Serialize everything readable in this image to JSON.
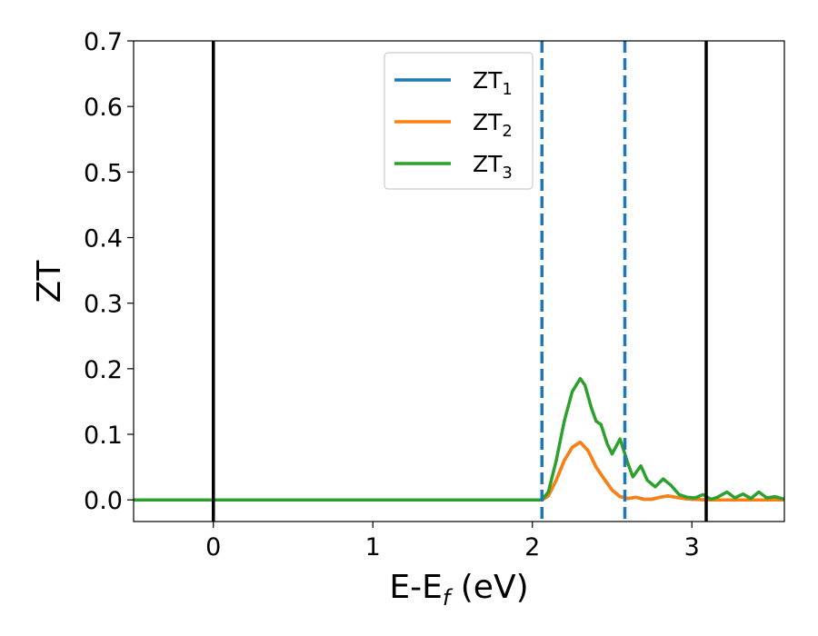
{
  "chart_data": {
    "type": "line",
    "xlabel": "E-E",
    "xlabel_sub": "f",
    "xlabel_unit": " (eV)",
    "ylabel": "ZT",
    "xlim": [
      -0.5,
      3.58
    ],
    "ylim": [
      -0.033,
      0.7
    ],
    "x_ticks": [
      0,
      1,
      2,
      3
    ],
    "x_tick_labels": [
      "0",
      "1",
      "2",
      "3"
    ],
    "y_ticks": [
      0.0,
      0.1,
      0.2,
      0.3,
      0.4,
      0.5,
      0.6,
      0.7
    ],
    "y_tick_labels": [
      "0.0",
      "0.1",
      "0.2",
      "0.3",
      "0.4",
      "0.5",
      "0.6",
      "0.7"
    ],
    "grid": false,
    "legend_position": "top-center",
    "vlines": [
      {
        "x": 0.0,
        "color": "#000000",
        "style": "solid"
      },
      {
        "x": 3.09,
        "color": "#000000",
        "style": "solid"
      },
      {
        "x": 2.06,
        "color": "#1f77b4",
        "style": "dashed"
      },
      {
        "x": 2.58,
        "color": "#1f77b4",
        "style": "dashed"
      }
    ],
    "series": [
      {
        "name": "ZT",
        "sub": "1",
        "color": "#1f77b4",
        "x": [
          -0.5,
          2.0,
          2.06,
          2.1,
          2.15,
          2.2,
          2.25,
          2.3,
          2.35,
          2.4,
          2.45,
          2.5,
          2.55,
          2.6,
          2.65,
          2.7,
          2.75,
          2.8,
          2.85,
          2.9,
          2.95,
          3.0,
          3.1,
          3.2,
          3.3,
          3.4,
          3.5,
          3.58
        ],
        "y": [
          0.0,
          0.0,
          0.0,
          0.006,
          0.03,
          0.06,
          0.08,
          0.088,
          0.075,
          0.05,
          0.032,
          0.015,
          0.005,
          0.002,
          0.004,
          0.001,
          0.001,
          0.004,
          0.006,
          0.004,
          0.002,
          0.001,
          0.0,
          0.0,
          0.0,
          0.0,
          0.0,
          0.0
        ]
      },
      {
        "name": "ZT",
        "sub": "2",
        "color": "#ff7f0e",
        "x": [
          -0.5,
          2.0,
          2.06,
          2.1,
          2.15,
          2.2,
          2.25,
          2.3,
          2.35,
          2.4,
          2.45,
          2.5,
          2.55,
          2.6,
          2.65,
          2.7,
          2.75,
          2.8,
          2.85,
          2.9,
          2.95,
          3.0,
          3.1,
          3.2,
          3.3,
          3.4,
          3.5,
          3.58
        ],
        "y": [
          0.0,
          0.0,
          0.0,
          0.006,
          0.03,
          0.06,
          0.08,
          0.088,
          0.075,
          0.05,
          0.032,
          0.015,
          0.005,
          0.002,
          0.004,
          0.001,
          0.001,
          0.004,
          0.006,
          0.004,
          0.002,
          0.001,
          0.0,
          0.0,
          0.0,
          0.0,
          0.0,
          0.0
        ]
      },
      {
        "name": "ZT",
        "sub": "3",
        "color": "#2ca02c",
        "x": [
          -0.5,
          2.0,
          2.06,
          2.1,
          2.15,
          2.2,
          2.25,
          2.3,
          2.33,
          2.37,
          2.4,
          2.43,
          2.47,
          2.5,
          2.55,
          2.6,
          2.63,
          2.68,
          2.72,
          2.77,
          2.82,
          2.87,
          2.92,
          2.97,
          3.02,
          3.07,
          3.12,
          3.16,
          3.22,
          3.27,
          3.32,
          3.37,
          3.42,
          3.47,
          3.52,
          3.58
        ],
        "y": [
          0.0,
          0.0,
          0.0,
          0.012,
          0.06,
          0.12,
          0.165,
          0.185,
          0.175,
          0.14,
          0.12,
          0.115,
          0.085,
          0.07,
          0.093,
          0.055,
          0.035,
          0.052,
          0.03,
          0.02,
          0.032,
          0.022,
          0.008,
          0.004,
          0.003,
          0.008,
          0.001,
          0.004,
          0.012,
          0.003,
          0.009,
          0.002,
          0.012,
          0.003,
          0.005,
          0.001
        ]
      }
    ]
  }
}
